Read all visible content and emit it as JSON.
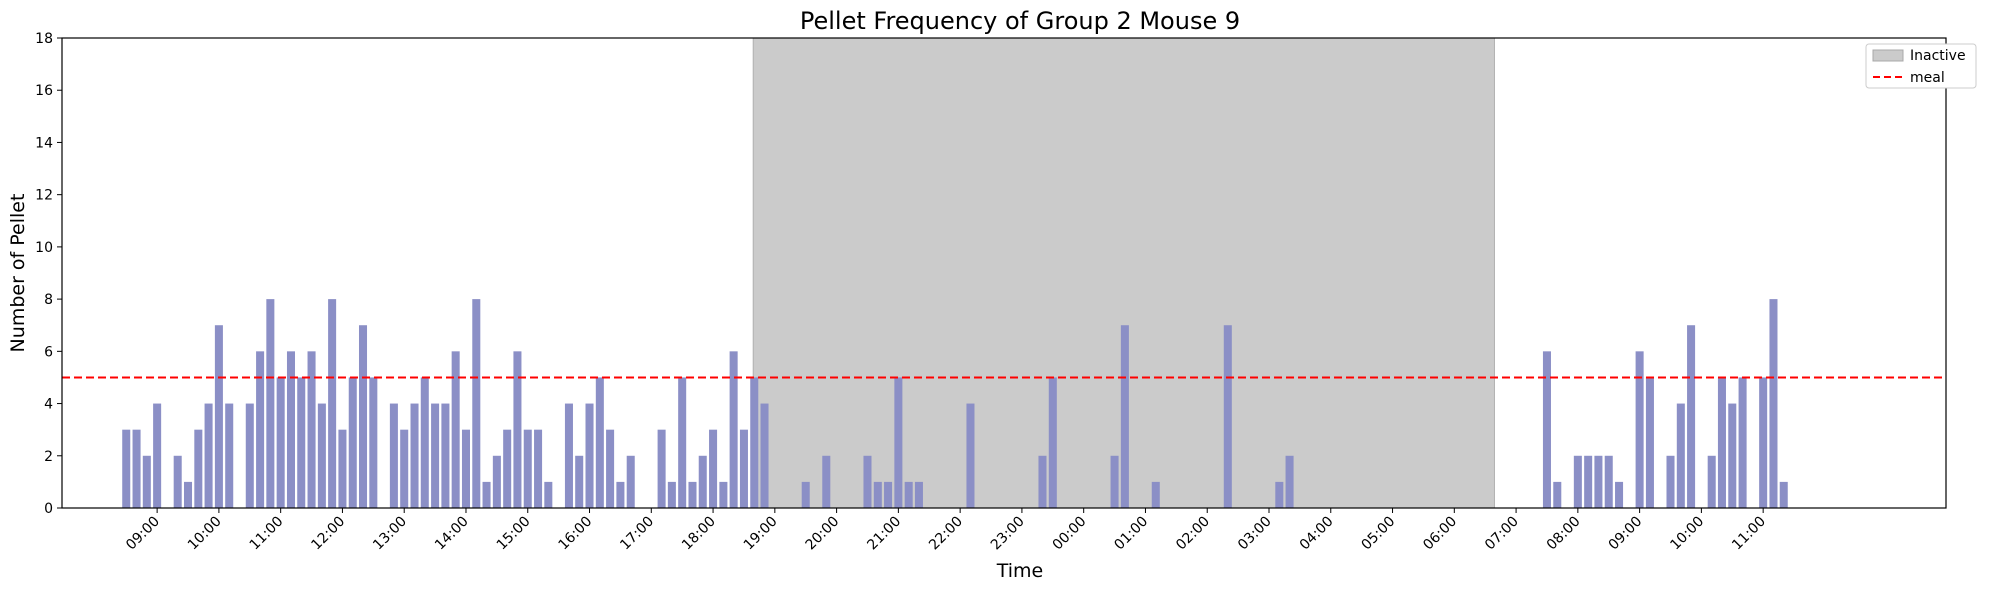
{
  "chart_data": {
    "type": "bar",
    "title": "Pellet Frequency of Group 2 Mouse 9",
    "xlabel": "Time",
    "ylabel": "Number of Pellet",
    "ylim": [
      0,
      18
    ],
    "yticks": [
      0,
      2,
      4,
      6,
      8,
      10,
      12,
      14,
      16,
      18
    ],
    "x_unit": "hours since 08:00 on day 1",
    "xlim": [
      -0.54,
      29.96
    ],
    "xtick_labels": [
      "09:00",
      "10:00",
      "11:00",
      "12:00",
      "13:00",
      "14:00",
      "15:00",
      "16:00",
      "17:00",
      "18:00",
      "19:00",
      "20:00",
      "21:00",
      "22:00",
      "23:00",
      "00:00",
      "01:00",
      "02:00",
      "03:00",
      "04:00",
      "05:00",
      "06:00",
      "07:00",
      "08:00",
      "09:00",
      "10:00",
      "11:00"
    ],
    "bar_color": "#8b8fc6",
    "inactive_period": {
      "label": "Inactive",
      "start": 10.65,
      "end": 22.65,
      "color": "#cbcbcb"
    },
    "meal_line": {
      "label": "meal",
      "value": 5,
      "color": "#ff0000",
      "style": "dashed"
    },
    "legend_position": "top-right",
    "bars": [
      [
        0.5,
        3
      ],
      [
        0.667,
        3
      ],
      [
        0.833,
        2
      ],
      [
        1.0,
        4
      ],
      [
        1.333,
        2
      ],
      [
        1.5,
        1
      ],
      [
        1.667,
        3
      ],
      [
        1.833,
        4
      ],
      [
        2.0,
        7
      ],
      [
        2.167,
        4
      ],
      [
        2.5,
        4
      ],
      [
        2.667,
        6
      ],
      [
        2.833,
        8
      ],
      [
        3.0,
        5
      ],
      [
        3.167,
        6
      ],
      [
        3.333,
        5
      ],
      [
        3.5,
        6
      ],
      [
        3.667,
        4
      ],
      [
        3.833,
        8
      ],
      [
        4.0,
        3
      ],
      [
        4.167,
        5
      ],
      [
        4.333,
        7
      ],
      [
        4.5,
        5
      ],
      [
        4.833,
        4
      ],
      [
        5.0,
        3
      ],
      [
        5.167,
        4
      ],
      [
        5.333,
        5
      ],
      [
        5.5,
        4
      ],
      [
        5.667,
        4
      ],
      [
        5.833,
        6
      ],
      [
        6.0,
        3
      ],
      [
        6.167,
        8
      ],
      [
        6.333,
        1
      ],
      [
        6.5,
        2
      ],
      [
        6.667,
        3
      ],
      [
        6.833,
        6
      ],
      [
        7.0,
        3
      ],
      [
        7.167,
        3
      ],
      [
        7.333,
        1
      ],
      [
        7.667,
        4
      ],
      [
        7.833,
        2
      ],
      [
        8.0,
        4
      ],
      [
        8.167,
        5
      ],
      [
        8.333,
        3
      ],
      [
        8.5,
        1
      ],
      [
        8.667,
        2
      ],
      [
        9.167,
        3
      ],
      [
        9.333,
        1
      ],
      [
        9.5,
        5
      ],
      [
        9.667,
        1
      ],
      [
        9.833,
        2
      ],
      [
        10.0,
        3
      ],
      [
        10.167,
        1
      ],
      [
        10.333,
        6
      ],
      [
        10.5,
        3
      ],
      [
        10.667,
        5
      ],
      [
        10.833,
        4
      ],
      [
        11.5,
        1
      ],
      [
        11.833,
        2
      ],
      [
        12.5,
        2
      ],
      [
        12.667,
        1
      ],
      [
        12.833,
        1
      ],
      [
        13.0,
        5
      ],
      [
        13.167,
        1
      ],
      [
        13.333,
        1
      ],
      [
        14.167,
        4
      ],
      [
        15.333,
        2
      ],
      [
        15.5,
        5
      ],
      [
        16.5,
        2
      ],
      [
        16.667,
        7
      ],
      [
        17.167,
        1
      ],
      [
        18.333,
        7
      ],
      [
        19.167,
        1
      ],
      [
        19.333,
        2
      ],
      [
        23.5,
        6
      ],
      [
        23.667,
        1
      ],
      [
        24.0,
        2
      ],
      [
        24.167,
        2
      ],
      [
        24.333,
        2
      ],
      [
        24.5,
        2
      ],
      [
        24.667,
        1
      ],
      [
        25.0,
        6
      ],
      [
        25.167,
        5
      ],
      [
        25.5,
        2
      ],
      [
        25.667,
        4
      ],
      [
        25.833,
        7
      ],
      [
        26.167,
        2
      ],
      [
        26.333,
        5
      ],
      [
        26.5,
        4
      ],
      [
        26.667,
        5
      ],
      [
        27.0,
        5
      ],
      [
        27.167,
        8
      ],
      [
        27.333,
        1
      ]
    ]
  }
}
